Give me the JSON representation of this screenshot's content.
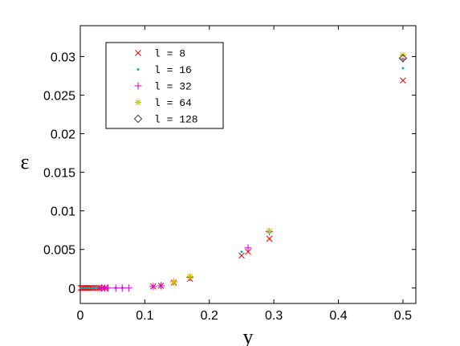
{
  "chart_data": {
    "type": "scatter",
    "title": "",
    "xlabel": "y",
    "ylabel": "ε",
    "xlim": [
      0,
      0.52
    ],
    "ylim": [
      -0.002,
      0.034
    ],
    "xticks": [
      0,
      0.1,
      0.2,
      0.3,
      0.4,
      0.5
    ],
    "xtick_labels": [
      "0",
      "0.1",
      "0.2",
      "0.3",
      "0.4",
      "0.5"
    ],
    "yticks": [
      0,
      0.005,
      0.01,
      0.015,
      0.02,
      0.025,
      0.03
    ],
    "ytick_labels": [
      "0",
      "0.005",
      "0.01",
      "0.015",
      "0.02",
      "0.025",
      "0.03"
    ],
    "grid": false,
    "legend_position": "top-left",
    "series": [
      {
        "name": "l = 8",
        "marker": "x",
        "color": "#ff0000",
        "points": [
          [
            0.001,
            0
          ],
          [
            0.003,
            0
          ],
          [
            0.005,
            0
          ],
          [
            0.007,
            0
          ],
          [
            0.009,
            0
          ],
          [
            0.011,
            0
          ],
          [
            0.013,
            0
          ],
          [
            0.015,
            0
          ],
          [
            0.018,
            0
          ],
          [
            0.021,
            0
          ],
          [
            0.024,
            0
          ],
          [
            0.027,
            0
          ],
          [
            0.03,
            0
          ],
          [
            0.034,
            0
          ],
          [
            0.038,
            0
          ],
          [
            0.113,
            0.0002
          ],
          [
            0.125,
            0.0003
          ],
          [
            0.145,
            0.0007
          ],
          [
            0.17,
            0.0012
          ],
          [
            0.25,
            0.0042
          ],
          [
            0.26,
            0.0047
          ],
          [
            0.293,
            0.0064
          ],
          [
            0.5,
            0.0269
          ]
        ]
      },
      {
        "name": "l = 16",
        "marker": "dot",
        "color": "#00b4c8",
        "points": [
          [
            0.002,
            0
          ],
          [
            0.006,
            0
          ],
          [
            0.01,
            0
          ],
          [
            0.014,
            0
          ],
          [
            0.018,
            0
          ],
          [
            0.022,
            0
          ],
          [
            0.026,
            0
          ],
          [
            0.038,
            0
          ],
          [
            0.042,
            0
          ],
          [
            0.055,
            0
          ],
          [
            0.065,
            0
          ],
          [
            0.113,
            0.0002
          ],
          [
            0.125,
            0.0003
          ],
          [
            0.145,
            0.0008
          ],
          [
            0.17,
            0.0014
          ],
          [
            0.25,
            0.0047
          ],
          [
            0.293,
            0.0072
          ],
          [
            0.5,
            0.0285
          ]
        ]
      },
      {
        "name": "l = 32",
        "marker": "plus",
        "color": "#cc00cc",
        "points": [
          [
            0.033,
            0
          ],
          [
            0.038,
            0
          ],
          [
            0.043,
            0
          ],
          [
            0.055,
            0
          ],
          [
            0.065,
            0
          ],
          [
            0.075,
            0
          ],
          [
            0.113,
            0.0002
          ],
          [
            0.125,
            0.0003
          ],
          [
            0.145,
            0.0008
          ],
          [
            0.17,
            0.0014
          ],
          [
            0.26,
            0.0052
          ],
          [
            0.293,
            0.0073
          ],
          [
            0.5,
            0.0297
          ]
        ]
      },
      {
        "name": "l = 64",
        "marker": "star",
        "color": "#c8c800",
        "points": [
          [
            0.145,
            0.0008
          ],
          [
            0.17,
            0.0015
          ],
          [
            0.293,
            0.0074
          ],
          [
            0.5,
            0.0302
          ]
        ]
      },
      {
        "name": "l = 128",
        "marker": "diamond",
        "color": "#404040",
        "points": [
          [
            0.5,
            0.0298
          ]
        ]
      }
    ]
  }
}
